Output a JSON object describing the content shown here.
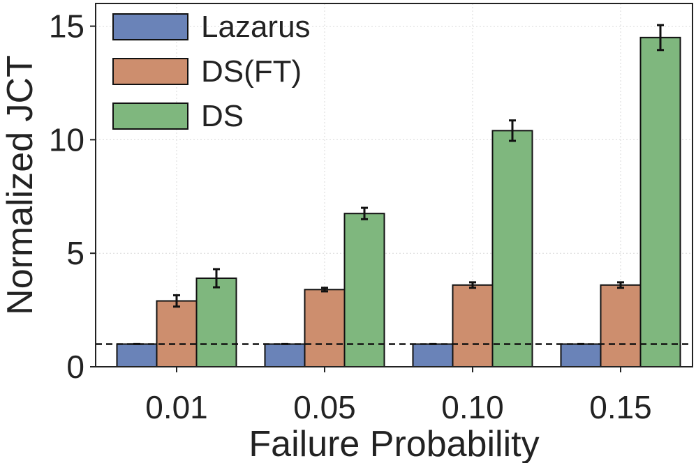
{
  "chart_data": {
    "type": "bar",
    "title": "",
    "xlabel": "Failure Probability",
    "ylabel": "Normalized JCT",
    "categories": [
      "0.01",
      "0.05",
      "0.10",
      "0.15"
    ],
    "ylim": [
      0,
      16
    ],
    "yticks": [
      0,
      5,
      10,
      15
    ],
    "grid": true,
    "legend_position": "top-left",
    "reference_line": {
      "y": 1.0,
      "style": "dashed"
    },
    "series": [
      {
        "name": "Lazarus",
        "color": "#6a83b8",
        "values": [
          1.0,
          1.0,
          1.0,
          1.0
        ],
        "errors": [
          0.0,
          0.0,
          0.0,
          0.0
        ]
      },
      {
        "name": "DS(FT)",
        "color": "#cd8e6e",
        "values": [
          2.9,
          3.4,
          3.6,
          3.6
        ],
        "errors": [
          0.25,
          0.08,
          0.12,
          0.12
        ]
      },
      {
        "name": "DS",
        "color": "#7fb77e",
        "values": [
          3.9,
          6.75,
          10.4,
          14.5
        ],
        "errors": [
          0.4,
          0.25,
          0.45,
          0.55
        ]
      }
    ]
  }
}
